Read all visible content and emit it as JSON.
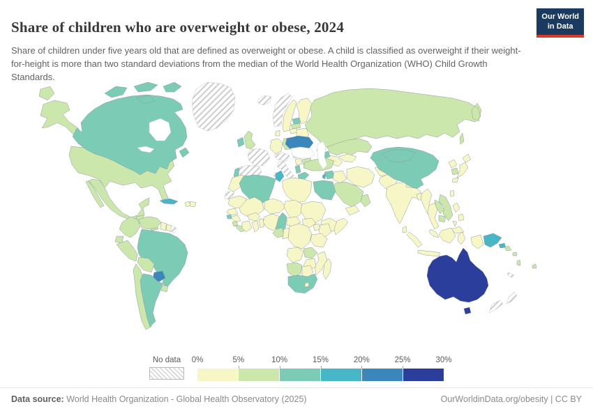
{
  "header": {
    "title": "Share of children who are overweight or obese, 2024",
    "logo": {
      "line1": "Our World",
      "line2": "in Data",
      "bg_color": "#1b3a5f",
      "bar_color": "#d93a2b"
    }
  },
  "subtitle": "Share of children under five years old that are defined as overweight or obese. A child is classified as overweight if their weight-for-height is more than two standard deviations from the median of the World Health Organization (WHO) Child Growth Standards.",
  "legend": {
    "no_data_label": "No data",
    "tick_labels": [
      "0%",
      "5%",
      "10%",
      "15%",
      "20%",
      "25%",
      "30%"
    ],
    "bin_colors": [
      "#f7f6c6",
      "#cbe7ac",
      "#7bcbb5",
      "#47b6c7",
      "#3b87bb",
      "#2c3e9c"
    ],
    "bin_ranges": [
      "0-5%",
      "5-10%",
      "10-15%",
      "15-20%",
      "20-25%",
      "25-30%"
    ]
  },
  "footer": {
    "datasource_label": "Data source:",
    "datasource_text": " World Health Organization - Global Health Observatory (2025)",
    "link_text": "OurWorldinData.org/obesity | CC BY"
  },
  "map": {
    "no_data_style": "hatched",
    "regions": {
      "united-states": 1,
      "canada": 2,
      "greenland": "nd",
      "iceland": "nd",
      "mexico": 1,
      "guatemala": 1,
      "honduras": "nd",
      "nicaragua": 1,
      "costa-rica": 1,
      "panama": 2,
      "cuba": 3,
      "haiti": 0,
      "dominican-republic": 0,
      "colombia": 1,
      "venezuela": 1,
      "guyana": 0,
      "suriname": 0,
      "french-guiana": "nd",
      "ecuador": 1,
      "peru": 1,
      "brazil": 2,
      "bolivia": 1,
      "paraguay": 4,
      "chile": 1,
      "argentina": 2,
      "uruguay": 1,
      "norway": "nd",
      "sweden": 0,
      "finland": 0,
      "denmark": 0,
      "united-kingdom": 1,
      "ireland": 2,
      "france": "nd",
      "spain": "nd",
      "portugal": 2,
      "germany": 0,
      "poland": 1,
      "austria": "nd",
      "italy": "nd",
      "hungary": 0,
      "romania": 0,
      "serbia": 0,
      "albania": 2,
      "greece": 2,
      "bulgaria": 1,
      "estonia": 2,
      "latvia": 1,
      "lithuania": 0,
      "belarus": 0,
      "ukraine": 4,
      "russia": 1,
      "kazakhstan": 1,
      "uzbekistan": 0,
      "turkmenistan": 0,
      "georgia": 2,
      "azerbaijan": 2,
      "turkey": 1,
      "syria": 2,
      "lebanon": 3,
      "iraq": 0,
      "iran": 0,
      "saudi-arabia": 1,
      "yemen": 0,
      "oman": 1,
      "afghanistan": 0,
      "pakistan": 0,
      "india": 0,
      "nepal": 0,
      "bangladesh": 0,
      "sri-lanka": 0,
      "china": 2,
      "mongolia": 2,
      "myanmar": 0,
      "thailand": 0,
      "laos": 1,
      "vietnam": 1,
      "cambodia": 1,
      "malaysia": 0,
      "indonesia": 0,
      "philippines": 0,
      "taiwan": 0,
      "japan": 0,
      "north-korea": 0,
      "south-korea": 1,
      "papua-new-guinea": 3,
      "solomon-islands": 1,
      "vanuatu": 1,
      "fiji": 1,
      "new-caledonia": "nd",
      "australia": 5,
      "new-zealand": "nd",
      "morocco": 0,
      "western-sahara": "nd",
      "algeria": 2,
      "tunisia": 3,
      "libya": 0,
      "egypt": 2,
      "mauritania": 0,
      "mali": 0,
      "niger": 0,
      "chad": 0,
      "sudan": 0,
      "ethiopia": 0,
      "somalia": 0,
      "senegal": 0,
      "guinea-bissau": 2,
      "guinea": 0,
      "sierra-leone": 1,
      "liberia": 1,
      "ivory-coast": 0,
      "ghana": 0,
      "benin": 0,
      "burkina-faso": 0,
      "nigeria": 0,
      "cameroon": 2,
      "central-african-republic": 0,
      "south-sudan": 0,
      "gabon": 1,
      "congo": 0,
      "dr-congo": 0,
      "uganda": 0,
      "kenya": 0,
      "tanzania": 0,
      "angola": 0,
      "zambia": 1,
      "mozambique": 0,
      "zimbabwe": 0,
      "namibia": 1,
      "botswana": 0,
      "south-africa": 2,
      "lesotho": 0,
      "madagascar": 0
    }
  },
  "chart_data": {
    "type": "heatmap",
    "subtype": "world-choropleth",
    "title": "Share of children who are overweight or obese, 2024",
    "unit": "%",
    "bins": [
      "0-5%",
      "5-10%",
      "10-15%",
      "15-20%",
      "20-25%",
      "25-30%",
      "No data"
    ],
    "legend_range": [
      0,
      30
    ],
    "values": {
      "United States": "5-10%",
      "Canada": "10-15%",
      "Greenland": "No data",
      "Iceland": "No data",
      "Mexico": "5-10%",
      "Guatemala": "5-10%",
      "Honduras": "No data",
      "Nicaragua": "5-10%",
      "Costa Rica": "5-10%",
      "Panama": "10-15%",
      "Cuba": "15-20%",
      "Haiti": "0-5%",
      "Dominican Republic": "0-5%",
      "Colombia": "5-10%",
      "Venezuela": "5-10%",
      "Guyana": "0-5%",
      "Suriname": "0-5%",
      "French Guiana": "No data",
      "Ecuador": "5-10%",
      "Peru": "5-10%",
      "Brazil": "10-15%",
      "Bolivia": "5-10%",
      "Paraguay": "20-25%",
      "Chile": "5-10%",
      "Argentina": "10-15%",
      "Uruguay": "5-10%",
      "Norway": "No data",
      "Sweden": "0-5%",
      "Finland": "0-5%",
      "Denmark": "0-5%",
      "United Kingdom": "5-10%",
      "Ireland": "10-15%",
      "France": "No data",
      "Spain": "No data",
      "Portugal": "10-15%",
      "Germany": "0-5%",
      "Poland": "5-10%",
      "Austria": "No data",
      "Switzerland": "No data",
      "Italy": "No data",
      "Hungary": "0-5%",
      "Romania": "0-5%",
      "Serbia": "0-5%",
      "Albania": "10-15%",
      "Greece": "10-15%",
      "Bulgaria": "5-10%",
      "Estonia": "10-15%",
      "Latvia": "5-10%",
      "Lithuania": "0-5%",
      "Belarus": "0-5%",
      "Ukraine": "20-25%",
      "Russia": "5-10%",
      "Kazakhstan": "5-10%",
      "Uzbekistan": "0-5%",
      "Turkmenistan": "0-5%",
      "Georgia": "10-15%",
      "Azerbaijan": "10-15%",
      "Turkey": "5-10%",
      "Syria": "10-15%",
      "Lebanon": "15-20%",
      "Iraq": "0-5%",
      "Iran": "0-5%",
      "Saudi Arabia": "5-10%",
      "Yemen": "0-5%",
      "Oman": "5-10%",
      "Afghanistan": "0-5%",
      "Pakistan": "0-5%",
      "India": "0-5%",
      "Nepal": "0-5%",
      "Bangladesh": "0-5%",
      "Sri Lanka": "0-5%",
      "China": "10-15%",
      "Mongolia": "10-15%",
      "Myanmar": "0-5%",
      "Thailand": "0-5%",
      "Laos": "5-10%",
      "Vietnam": "5-10%",
      "Cambodia": "5-10%",
      "Malaysia": "0-5%",
      "Indonesia": "0-5%",
      "Philippines": "0-5%",
      "Taiwan": "0-5%",
      "Japan": "0-5%",
      "North Korea": "0-5%",
      "South Korea": "5-10%",
      "Papua New Guinea": "15-20%",
      "Solomon Islands": "5-10%",
      "Vanuatu": "5-10%",
      "Fiji": "5-10%",
      "New Caledonia": "No data",
      "Australia": "25-30%",
      "New Zealand": "No data",
      "Morocco": "0-5%",
      "Western Sahara": "No data",
      "Algeria": "10-15%",
      "Tunisia": "15-20%",
      "Libya": "0-5%",
      "Egypt": "10-15%",
      "Mauritania": "0-5%",
      "Mali": "0-5%",
      "Niger": "0-5%",
      "Chad": "0-5%",
      "Sudan": "0-5%",
      "Ethiopia": "0-5%",
      "Somalia": "0-5%",
      "Senegal": "0-5%",
      "Guinea-Bissau": "10-15%",
      "Guinea": "0-5%",
      "Sierra Leone": "5-10%",
      "Liberia": "5-10%",
      "Cote d'Ivoire": "0-5%",
      "Ghana": "0-5%",
      "Benin": "0-5%",
      "Burkina Faso": "0-5%",
      "Nigeria": "0-5%",
      "Cameroon": "10-15%",
      "Central African Republic": "0-5%",
      "South Sudan": "0-5%",
      "Gabon": "5-10%",
      "Congo": "0-5%",
      "Democratic Republic of Congo": "0-5%",
      "Uganda": "0-5%",
      "Kenya": "0-5%",
      "Tanzania": "0-5%",
      "Angola": "0-5%",
      "Zambia": "5-10%",
      "Mozambique": "0-5%",
      "Zimbabwe": "0-5%",
      "Namibia": "5-10%",
      "Botswana": "0-5%",
      "South Africa": "10-15%",
      "Lesotho": "0-5%",
      "Madagascar": "0-5%"
    }
  }
}
